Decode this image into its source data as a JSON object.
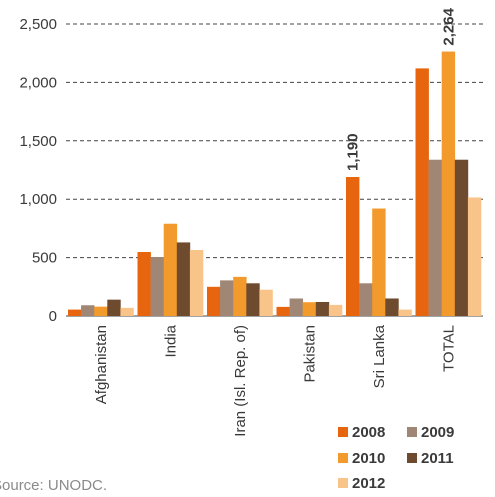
{
  "source_text": "Source: UNODC.",
  "chart_data": {
    "type": "bar",
    "title": "",
    "xlabel": "",
    "ylabel": "",
    "categories": [
      "Afghanistan",
      "India",
      "Iran (Isl. Rep. of)",
      "Pakistan",
      "Sri Lanka",
      "TOTAL"
    ],
    "series": [
      {
        "name": "2008",
        "color": "#E8650F",
        "values": [
          55,
          548,
          250,
          78,
          1190,
          2120
        ]
      },
      {
        "name": "2009",
        "color": "#A08674",
        "values": [
          92,
          505,
          305,
          150,
          280,
          1338
        ]
      },
      {
        "name": "2010",
        "color": "#F39A2C",
        "values": [
          80,
          790,
          335,
          118,
          920,
          2264
        ]
      },
      {
        "name": "2011",
        "color": "#6E4A2E",
        "values": [
          140,
          630,
          280,
          120,
          150,
          1338
        ]
      },
      {
        "name": "2012",
        "color": "#F8C48A",
        "values": [
          70,
          565,
          225,
          95,
          55,
          1015
        ]
      }
    ],
    "data_labels": [
      {
        "series": "2008",
        "category": "Sri Lanka",
        "text": "1,190"
      },
      {
        "series": "2010",
        "category": "TOTAL",
        "text": "2,264"
      }
    ],
    "ylim": [
      0,
      2500
    ],
    "yticks": [
      0,
      500,
      1000,
      1500,
      2000,
      2500
    ],
    "ytick_labels": [
      "0",
      "500",
      "1,000",
      "1,500",
      "2,000",
      "2,500"
    ],
    "grid": "dashed horizontal",
    "legend_position": "bottom-right"
  }
}
